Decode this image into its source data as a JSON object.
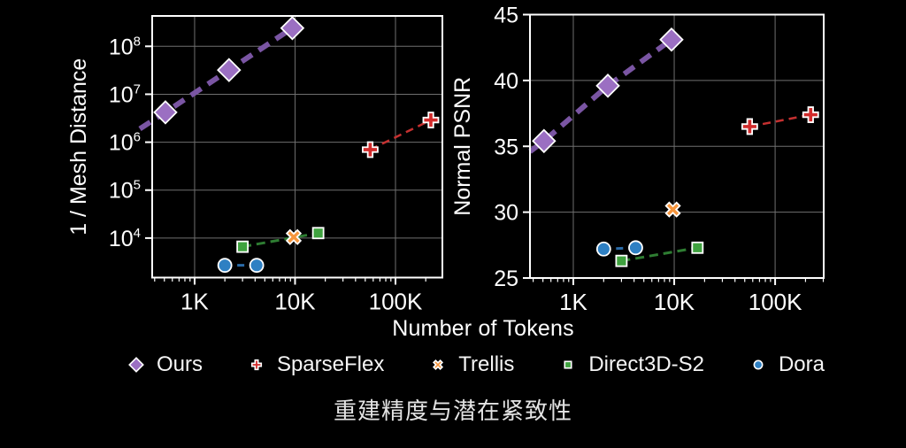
{
  "page": {
    "background": "#000000",
    "caption": "重建精度与潜在紧致性",
    "shared_xlabel": "Number of Tokens"
  },
  "colors": {
    "grid": "#6f6f6f",
    "axis": "#ffffff",
    "tick_text": "#ffffff",
    "caption_text": "#e3e3e3"
  },
  "legend": {
    "items": [
      {
        "label": "Ours",
        "marker": "diamond",
        "color": "#9b6fc2"
      },
      {
        "label": "SparseFlex",
        "marker": "plus",
        "color": "#d12b2b"
      },
      {
        "label": "Trellis",
        "marker": "x",
        "color": "#f6953c"
      },
      {
        "label": "Direct3D-S2",
        "marker": "square",
        "color": "#3fa23f"
      },
      {
        "label": "Dora",
        "marker": "circle",
        "color": "#2e80c3"
      }
    ]
  },
  "chart_data": [
    {
      "type": "scatter",
      "title": "",
      "xlabel": "Number of Tokens",
      "ylabel": "1 / Mesh Distance",
      "xscale": "log",
      "yscale": "log",
      "grid": true,
      "legend_position": "below-figure",
      "xlim": [
        378,
        293000
      ],
      "ylim": [
        1500,
        430000000
      ],
      "x_ticks": [
        {
          "value": 1000,
          "label": "1K"
        },
        {
          "value": 10000,
          "label": "10K"
        },
        {
          "value": 100000,
          "label": "100K"
        }
      ],
      "y_ticks": [
        {
          "value": 10000,
          "exp": "4"
        },
        {
          "value": 100000,
          "exp": "5"
        },
        {
          "value": 1000000,
          "exp": "6"
        },
        {
          "value": 10000000,
          "exp": "7"
        },
        {
          "value": 100000000,
          "exp": "8"
        }
      ],
      "series": [
        {
          "name": "Dora",
          "marker": "circle",
          "color": "#2e80c3",
          "line_color": "#2a6ba8",
          "line_width": 3,
          "dash": "8 6",
          "x": [
            2000,
            4150
          ],
          "y": [
            2700,
            2700
          ]
        },
        {
          "name": "Direct3D-S2",
          "marker": "square",
          "color": "#3fa23f",
          "line_color": "#2e7d32",
          "line_width": 3,
          "dash": "10 6",
          "x": [
            3000,
            17000
          ],
          "y": [
            6600,
            12700
          ]
        },
        {
          "name": "Trellis",
          "marker": "x",
          "color": "#f6953c",
          "x": [
            9700
          ],
          "y": [
            10500
          ]
        },
        {
          "name": "SparseFlex",
          "marker": "plus",
          "color": "#d12b2b",
          "line_color": "#c53030",
          "line_width": 2.5,
          "dash": "9 6",
          "x": [
            56000,
            225000
          ],
          "y": [
            700000,
            2900000
          ]
        },
        {
          "name": "Ours",
          "marker": "diamond",
          "color": "#9b6fc2",
          "line_color": "#7a55a3",
          "line_width": 6,
          "dash": "14 9",
          "x": [
            512,
            2200,
            9400
          ],
          "y": [
            4200000,
            32000000,
            240000000
          ],
          "line_lead": {
            "x": 285,
            "y": 1900000
          }
        }
      ]
    },
    {
      "type": "scatter",
      "title": "",
      "xlabel": "Number of Tokens",
      "ylabel": "Normal PSNR",
      "xscale": "log",
      "yscale": "linear",
      "grid": true,
      "legend_position": "below-figure",
      "xlim": [
        372,
        303000
      ],
      "ylim": [
        25,
        45
      ],
      "x_ticks": [
        {
          "value": 1000,
          "label": "1K"
        },
        {
          "value": 10000,
          "label": "10K"
        },
        {
          "value": 100000,
          "label": "100K"
        }
      ],
      "y_ticks": [
        {
          "value": 25,
          "label": "25"
        },
        {
          "value": 30,
          "label": "30"
        },
        {
          "value": 35,
          "label": "35"
        },
        {
          "value": 40,
          "label": "40"
        },
        {
          "value": 45,
          "label": "45"
        }
      ],
      "series": [
        {
          "name": "Dora",
          "marker": "circle",
          "color": "#2e80c3",
          "line_color": "#2a6ba8",
          "line_width": 3,
          "dash": "8 6",
          "x": [
            2000,
            4150
          ],
          "y": [
            27.2,
            27.3
          ]
        },
        {
          "name": "Direct3D-S2",
          "marker": "square",
          "color": "#3fa23f",
          "line_color": "#2e7d32",
          "line_width": 3,
          "dash": "10 6",
          "x": [
            3000,
            17000
          ],
          "y": [
            26.3,
            27.3
          ]
        },
        {
          "name": "Trellis",
          "marker": "x",
          "color": "#f6953c",
          "x": [
            9700
          ],
          "y": [
            30.2
          ]
        },
        {
          "name": "SparseFlex",
          "marker": "plus",
          "color": "#d12b2b",
          "line_color": "#c53030",
          "line_width": 2.5,
          "dash": "9 6",
          "x": [
            56000,
            225000
          ],
          "y": [
            36.5,
            37.4
          ]
        },
        {
          "name": "Ours",
          "marker": "diamond",
          "color": "#9b6fc2",
          "line_color": "#7a55a3",
          "line_width": 6,
          "dash": "14 9",
          "x": [
            512,
            2200,
            9400
          ],
          "y": [
            35.4,
            39.6,
            43.1
          ],
          "line_lead": {
            "x": 372,
            "y": 34.6
          }
        }
      ]
    }
  ]
}
